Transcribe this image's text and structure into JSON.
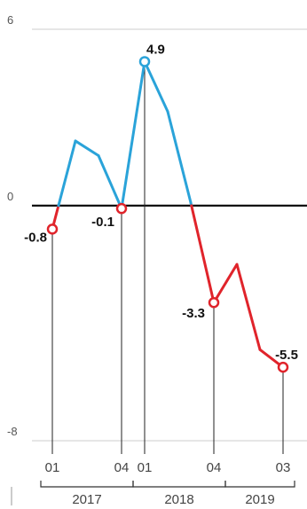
{
  "chart_data": {
    "type": "line",
    "title": "",
    "xlabel": "",
    "ylabel": "",
    "ylim": [
      -8,
      6
    ],
    "yticks": [
      6,
      0,
      -8
    ],
    "grid": "horizontal",
    "legend": "none",
    "colors": {
      "positive": "#2aa3d9",
      "negative": "#e0242b",
      "zero_line": "#111111",
      "grid": "#cccccc",
      "guide": "#222222"
    },
    "x": [
      0,
      1,
      2,
      3,
      4,
      5,
      6,
      7,
      8,
      9,
      10
    ],
    "values": [
      -0.8,
      2.2,
      1.7,
      -0.1,
      4.9,
      3.2,
      0.1,
      -3.3,
      -2.0,
      -4.9,
      -5.5
    ],
    "x_tick_labels": [
      {
        "index": 0,
        "label": "01"
      },
      {
        "index": 3,
        "label": "04"
      },
      {
        "index": 4,
        "label": "01"
      },
      {
        "index": 7,
        "label": "04"
      },
      {
        "index": 10,
        "label": "03"
      }
    ],
    "year_groups": [
      {
        "label": "2017",
        "start": 0,
        "end": 3
      },
      {
        "label": "2018",
        "start": 4,
        "end": 7
      },
      {
        "label": "2019",
        "start": 8,
        "end": 10
      }
    ],
    "highlighted_points": [
      {
        "index": 0,
        "label": "-0.8"
      },
      {
        "index": 3,
        "label": "-0.1"
      },
      {
        "index": 4,
        "label": "4.9"
      },
      {
        "index": 7,
        "label": "-3.3"
      },
      {
        "index": 10,
        "label": "-5.5"
      }
    ]
  }
}
